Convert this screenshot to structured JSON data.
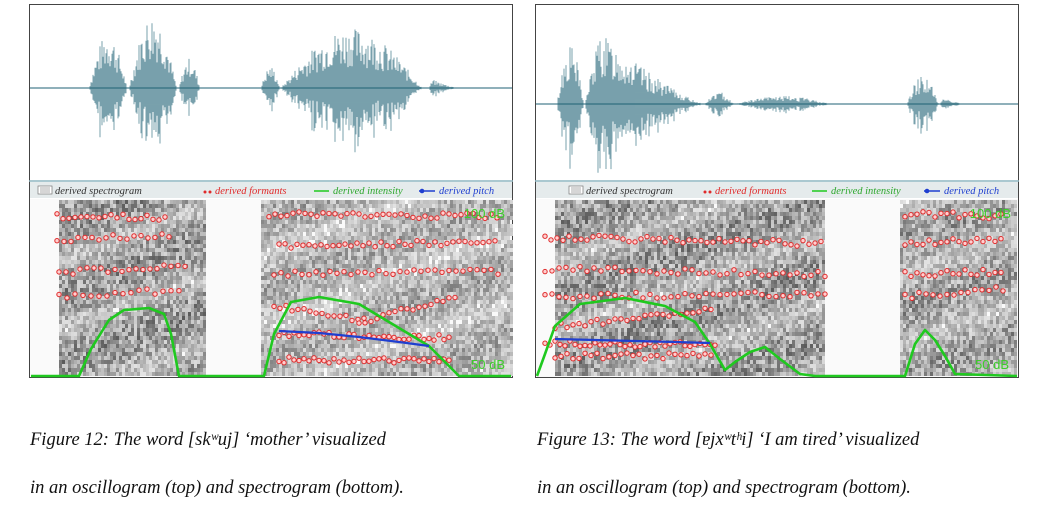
{
  "figures": [
    {
      "legend": {
        "spectrogram": "derived spectrogram",
        "formants": "derived formants",
        "intensity": "derived intensity",
        "pitch": "derived pitch"
      },
      "db_top": "100 dB",
      "db_bottom": "50 dB",
      "caption_line1": "Figure 12: The word [skʷuj] ‘mother’ visualized",
      "caption_line2": "in an oscillogram (top) and spectrogram (bottom)."
    },
    {
      "legend": {
        "spectrogram": "derived spectrogram",
        "formants": "derived formants",
        "intensity": "derived intensity",
        "pitch": "derived pitch"
      },
      "db_top": "100 dB",
      "db_bottom": "50 dB",
      "caption_line1": "Figure 13: The word [ɐjxʷtʰi] ‘I am tired’ visualized",
      "caption_line2": "in an oscillogram (top) and spectrogram (bottom)."
    }
  ],
  "colors": {
    "waveform": "#1f6275",
    "formants": "#e02a2a",
    "intensity": "#1fc91f",
    "pitch": "#1f3fd0",
    "legend_bar": "#e5ebec"
  }
}
